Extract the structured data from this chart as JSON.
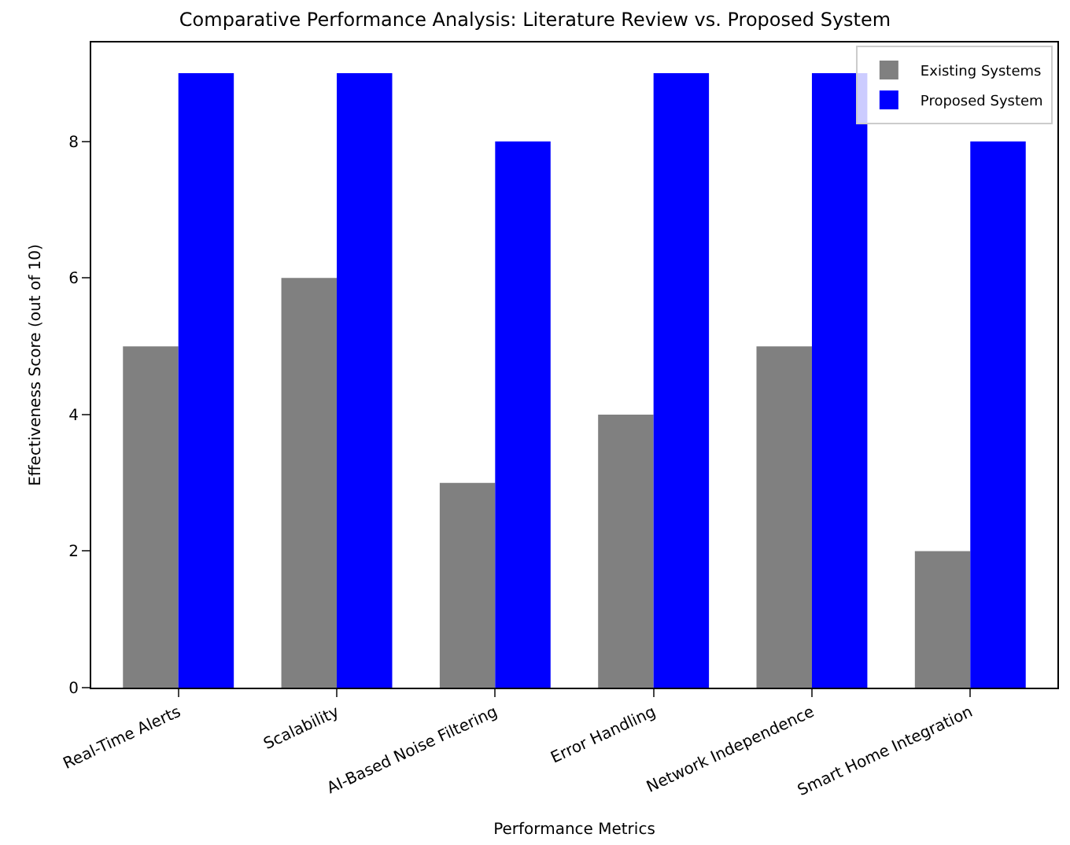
{
  "chart_data": {
    "type": "bar",
    "title": "Comparative Performance Analysis: Literature Review vs. Proposed System",
    "xlabel": "Performance Metrics",
    "ylabel": "Effectiveness Score (out of 10)",
    "categories": [
      "Real-Time Alerts",
      "Scalability",
      "AI-Based Noise Filtering",
      "Error Handling",
      "Network Independence",
      "Smart Home Integration"
    ],
    "series": [
      {
        "name": "Existing Systems",
        "color": "#808080",
        "values": [
          5,
          6,
          3,
          4,
          5,
          2
        ]
      },
      {
        "name": "Proposed System",
        "color": "#0000ff",
        "values": [
          9,
          9,
          8,
          9,
          9,
          8
        ]
      }
    ],
    "ylim": [
      0,
      9.45
    ],
    "yticks": [
      0,
      2,
      4,
      6,
      8
    ],
    "legend": "top right"
  }
}
